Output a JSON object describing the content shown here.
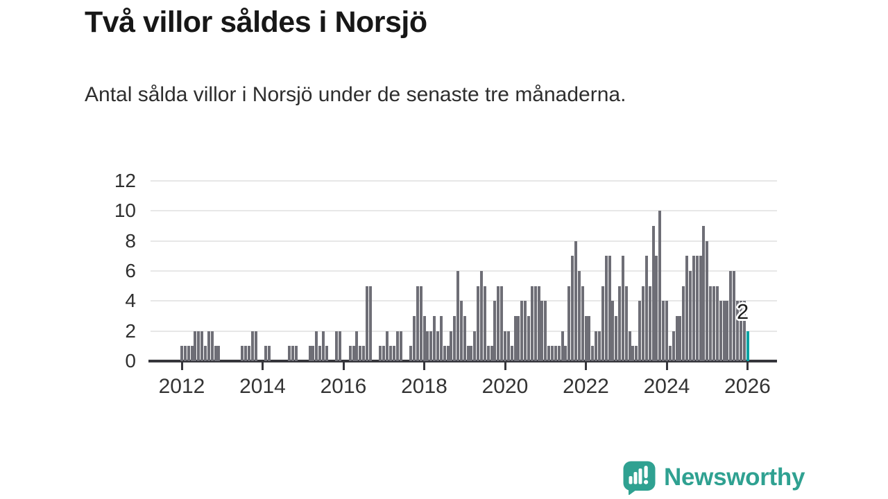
{
  "header": {
    "title": "Två villor såldes i Norsjö",
    "subtitle": "Antal sålda villor i Norsjö under de senaste tre månaderna."
  },
  "chart_data": {
    "type": "bar",
    "title": "Två villor såldes i Norsjö",
    "subtitle": "Antal sålda villor i Norsjö under de senaste tre månaderna.",
    "frequency": "monthly",
    "x_start": "2012-01",
    "x_end": "2026-01",
    "xlabel": "",
    "ylabel": "",
    "ylim": [
      0,
      12
    ],
    "grid": true,
    "y_tick_labels": [
      "0",
      "2",
      "4",
      "6",
      "8",
      "10",
      "12"
    ],
    "x_tick_labels": [
      "2012",
      "2014",
      "2016",
      "2018",
      "2020",
      "2022",
      "2024",
      "2026"
    ],
    "values": [
      1,
      1,
      1,
      1,
      2,
      2,
      2,
      1,
      2,
      2,
      1,
      1,
      0,
      0,
      0,
      0,
      0,
      0,
      1,
      1,
      1,
      2,
      2,
      0,
      0,
      1,
      1,
      0,
      0,
      0,
      0,
      0,
      1,
      1,
      1,
      0,
      0,
      0,
      1,
      1,
      2,
      1,
      2,
      1,
      0,
      0,
      2,
      2,
      0,
      0,
      1,
      1,
      2,
      1,
      1,
      5,
      5,
      0,
      0,
      1,
      1,
      2,
      1,
      1,
      2,
      2,
      0,
      0,
      1,
      3,
      5,
      5,
      3,
      2,
      2,
      3,
      2,
      3,
      1,
      1,
      2,
      3,
      6,
      4,
      3,
      1,
      1,
      2,
      5,
      6,
      5,
      1,
      1,
      4,
      5,
      5,
      2,
      2,
      1,
      3,
      3,
      4,
      4,
      3,
      5,
      5,
      5,
      4,
      4,
      1,
      1,
      1,
      1,
      2,
      1,
      5,
      7,
      8,
      6,
      5,
      3,
      3,
      1,
      2,
      2,
      5,
      7,
      7,
      4,
      3,
      5,
      7,
      5,
      2,
      1,
      1,
      4,
      5,
      7,
      5,
      9,
      7,
      10,
      4,
      4,
      1,
      2,
      3,
      3,
      5,
      7,
      6,
      7,
      7,
      7,
      9,
      8,
      5,
      5,
      5,
      4,
      4,
      4,
      6,
      6,
      4,
      4,
      4,
      2
    ],
    "last_point": {
      "label": "2",
      "value": 2,
      "highlighted": true
    },
    "colors": {
      "bar": "#6e6e76",
      "highlight": "#00a3a3",
      "grid": "#e7e7e7",
      "axis": "#35353b",
      "text": "#2f2f2f"
    }
  },
  "branding": {
    "wordmark": "Newsworthy",
    "color": "#2fa191",
    "logo": "bar-chart-speech-bubble-icon"
  }
}
